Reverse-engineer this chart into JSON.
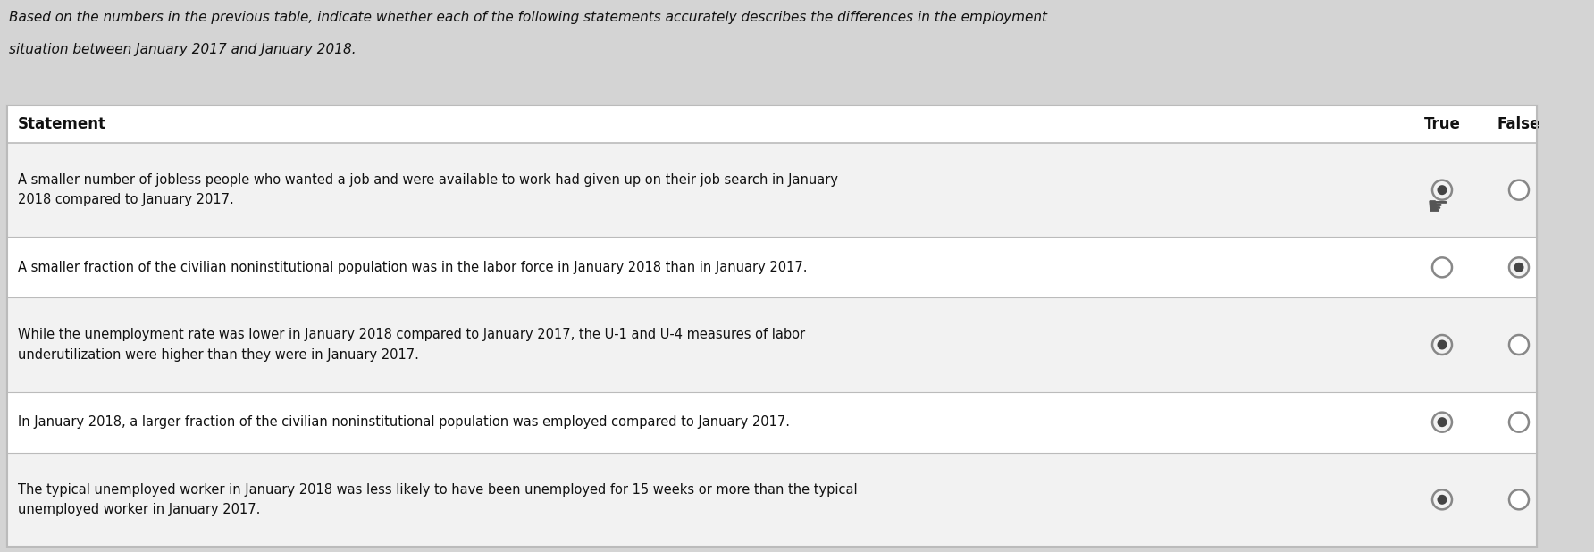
{
  "title_line1": "Based on the numbers in the previous table, indicate whether each of the following statements accurately describes the differences in the employment",
  "title_line2": "situation between January 2017 and January 2018.",
  "header_col0": "Statement",
  "header_col1": "True",
  "header_col2": "False",
  "rows": [
    {
      "text": "A smaller number of jobless people who wanted a job and were available to work had given up on their job search in January\n2018 compared to January 2017.",
      "true_selected": true,
      "false_selected": false,
      "show_cursor": true
    },
    {
      "text": "A smaller fraction of the civilian noninstitutional population was in the labor force in January 2018 than in January 2017.",
      "true_selected": false,
      "false_selected": true,
      "show_cursor": false
    },
    {
      "text": "While the unemployment rate was lower in January 2018 compared to January 2017, the U-1 and U-4 measures of labor\nunderutilization were higher than they were in January 2017.",
      "true_selected": true,
      "false_selected": false,
      "show_cursor": false
    },
    {
      "text": "In January 2018, a larger fraction of the civilian noninstitutional population was employed compared to January 2017.",
      "true_selected": true,
      "false_selected": false,
      "show_cursor": false
    },
    {
      "text": "The typical unemployed worker in January 2018 was less likely to have been unemployed for 15 weeks or more than the typical\nunemployed worker in January 2017.",
      "true_selected": true,
      "false_selected": false,
      "show_cursor": false
    }
  ],
  "fig_bg": "#d4d4d4",
  "table_white": "#ffffff",
  "table_light": "#f2f2f2",
  "border_color": "#bbbbbb",
  "text_color": "#111111",
  "selected_fill": "#444444",
  "selected_inner": "#888888",
  "radio_edge": "#888888",
  "title_fontsize": 11.0,
  "header_fontsize": 12.0,
  "row_fontsize": 10.5
}
